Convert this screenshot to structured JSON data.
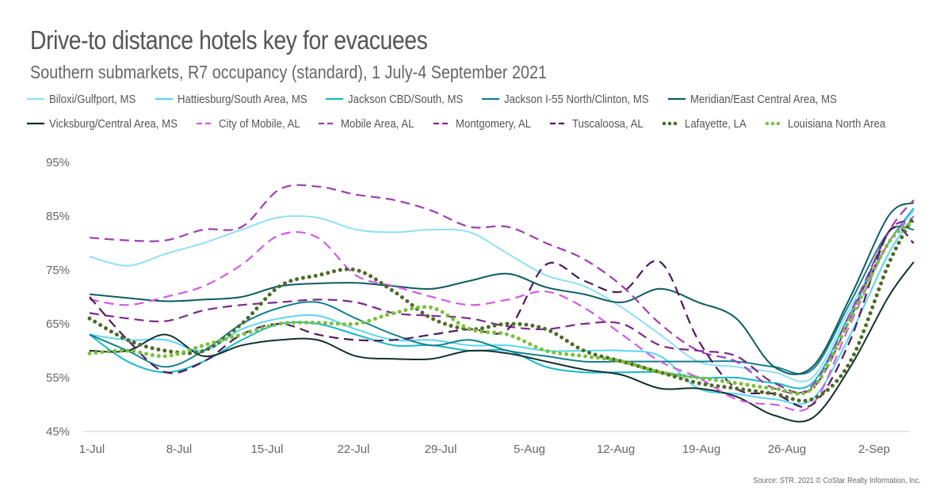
{
  "header": {
    "title": "Drive-to distance hotels key for evacuees",
    "subtitle": "Southern submarkets, R7 occupancy (standard), 1 July-4 September 2021"
  },
  "footer": {
    "source": "Source: STR. 2021 © CoStar Realty Information, Inc."
  },
  "chart_data": {
    "type": "line",
    "title": "Drive-to distance hotels key for evacuees",
    "subtitle": "Southern submarkets, R7 occupancy (standard), 1 July-4 September 2021",
    "xlabel": "",
    "ylabel": "",
    "ylim": [
      45,
      95
    ],
    "yticks": [
      95,
      85,
      75,
      65,
      55,
      45
    ],
    "ytick_labels": [
      "95%",
      "85%",
      "75%",
      "65%",
      "55%",
      "45%"
    ],
    "xticks": [
      0,
      7,
      14,
      21,
      28,
      35,
      42,
      49,
      56,
      63
    ],
    "xtick_labels": [
      "1-Jul",
      "8-Jul",
      "15-Jul",
      "22-Jul",
      "29-Jul",
      "5-Aug",
      "12-Aug",
      "19-Aug",
      "26-Aug",
      "2-Sep"
    ],
    "xlim": [
      0,
      65
    ],
    "grid": "baseline-only",
    "legend_position": "top",
    "x": [
      0,
      3,
      6,
      9,
      12,
      15,
      18,
      21,
      24,
      27,
      30,
      33,
      36,
      39,
      42,
      45,
      48,
      51,
      54,
      57,
      60,
      63,
      65
    ],
    "series": [
      {
        "name": "Biloxi/Gulfport, MS",
        "color": "#8fe0f5",
        "style": "solid",
        "values": [
          77.5,
          75.8,
          78,
          80,
          82.5,
          84.8,
          84.7,
          82.5,
          82,
          82.5,
          82,
          78,
          74,
          72,
          68,
          63,
          58,
          57,
          56,
          55,
          68,
          80,
          86
        ]
      },
      {
        "name": "Hattiesburg/South Area, MS",
        "color": "#5ad6ee",
        "style": "solid",
        "values": [
          63,
          62,
          62,
          60,
          64,
          66,
          66.5,
          64,
          62,
          62,
          61,
          61,
          60,
          60,
          60,
          59,
          53,
          52,
          51,
          51,
          63,
          78,
          85
        ]
      },
      {
        "name": "Jackson CBD/South, MS",
        "color": "#14b8c8",
        "style": "solid",
        "values": [
          63,
          58,
          56,
          58,
          62,
          65,
          65,
          63,
          61,
          61,
          60,
          60,
          57,
          56,
          56,
          56,
          55,
          55,
          54,
          54,
          67,
          80,
          86.5
        ]
      },
      {
        "name": "Jackson I-55 North/Clinton, MS",
        "color": "#137f8f",
        "style": "solid",
        "values": [
          63,
          60,
          57,
          60,
          65,
          68,
          69,
          66,
          63,
          61,
          62,
          60,
          59,
          58,
          58,
          58,
          58,
          58,
          57,
          56.5,
          69,
          82,
          82.5
        ]
      },
      {
        "name": "Meridian/East Central Area, MS",
        "color": "#0d5c5f",
        "style": "solid",
        "values": [
          70.5,
          69.8,
          69.2,
          69.5,
          70,
          72,
          72.5,
          72.6,
          72,
          71.5,
          73,
          74.3,
          71.8,
          70.5,
          69,
          71.5,
          69,
          66,
          57,
          57,
          70,
          85,
          87.5
        ]
      },
      {
        "name": "Vicksburg/Central Area, MS",
        "color": "#12302e",
        "style": "solid",
        "values": [
          60,
          60,
          63,
          59,
          61,
          62,
          62,
          59,
          58.5,
          58.5,
          60,
          59.5,
          58,
          56.5,
          55.5,
          53,
          53,
          51.5,
          48,
          47.5,
          57,
          70,
          76.5
        ]
      },
      {
        "name": "City of Mobile, AL",
        "color": "#d25be8",
        "style": "dash",
        "values": [
          69.5,
          68.5,
          70,
          72,
          76,
          81.5,
          81,
          74,
          72,
          70,
          68.5,
          69.5,
          71,
          68,
          63,
          58,
          55,
          51,
          50,
          50,
          65,
          80,
          85
        ]
      },
      {
        "name": "Mobile Area, AL",
        "color": "#a03cb4",
        "style": "dash",
        "values": [
          81,
          80.5,
          80.5,
          82.5,
          83,
          90,
          90.5,
          89,
          88,
          86,
          83,
          83,
          80,
          77,
          72,
          65,
          60,
          58,
          53,
          53.5,
          67,
          82,
          88
        ]
      },
      {
        "name": "Montgomery, AL",
        "color": "#7a2a8c",
        "style": "dash",
        "values": [
          67,
          66,
          65.5,
          67.5,
          68.5,
          69,
          69.5,
          69,
          67,
          66.5,
          66,
          64.5,
          64,
          65,
          65,
          61,
          60,
          59,
          54,
          53,
          66,
          82,
          84
        ]
      },
      {
        "name": "Tuscaloosa, AL",
        "color": "#4e1a5c",
        "style": "dash",
        "values": [
          70,
          62,
          56,
          58,
          63,
          65,
          63,
          62,
          62,
          63,
          64,
          64,
          76,
          73,
          71,
          76.5,
          62,
          53,
          52,
          50,
          62,
          82,
          80
        ]
      },
      {
        "name": "Lafayette, LA",
        "color": "#4f6a26",
        "style": "dot",
        "values": [
          66,
          62,
          60,
          60,
          65,
          72,
          74,
          75,
          71,
          66,
          64,
          65,
          64,
          60,
          58,
          56,
          54,
          53,
          52,
          51,
          58,
          76,
          85
        ]
      },
      {
        "name": "Louisiana North Area",
        "color": "#7cbf3c",
        "style": "dot",
        "values": [
          59.5,
          60,
          59,
          61,
          63,
          65,
          65.2,
          65,
          67,
          68,
          64,
          63,
          60,
          59,
          58,
          56,
          55,
          54,
          53,
          53,
          66,
          80,
          84
        ]
      }
    ]
  }
}
